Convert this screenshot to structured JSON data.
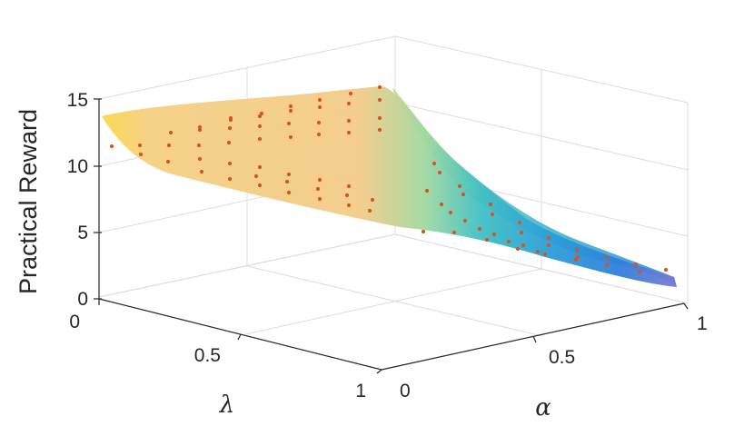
{
  "chart_data": {
    "type": "surface3d",
    "title": "",
    "xlabel": "α",
    "ylabel": "λ",
    "zlabel": "Practical Reward",
    "xlim": [
      0,
      1
    ],
    "ylim": [
      0,
      1
    ],
    "zlim": [
      0,
      15
    ],
    "xticks": [
      "0",
      "0.5",
      "1"
    ],
    "yticks": [
      "0",
      "0.5",
      "1"
    ],
    "zticks": [
      "0",
      "5",
      "10",
      "15"
    ],
    "grid": true,
    "colormap": "parula",
    "surface_points": [
      {
        "alpha": 0.0,
        "lambda": 0.0,
        "reward": 13.2
      },
      {
        "alpha": 0.0,
        "lambda": 0.5,
        "reward": 14.6
      },
      {
        "alpha": 0.0,
        "lambda": 1.0,
        "reward": 15.0
      },
      {
        "alpha": 0.5,
        "lambda": 0.0,
        "reward": 5.0
      },
      {
        "alpha": 0.5,
        "lambda": 0.5,
        "reward": 5.6
      },
      {
        "alpha": 0.5,
        "lambda": 1.0,
        "reward": 6.0
      },
      {
        "alpha": 1.0,
        "lambda": 0.0,
        "reward": 2.0
      },
      {
        "alpha": 1.0,
        "lambda": 0.5,
        "reward": 2.5
      },
      {
        "alpha": 1.0,
        "lambda": 1.0,
        "reward": 2.6
      }
    ],
    "sample_points": "red dots on the surface at a regular grid of alpha and lambda values"
  }
}
